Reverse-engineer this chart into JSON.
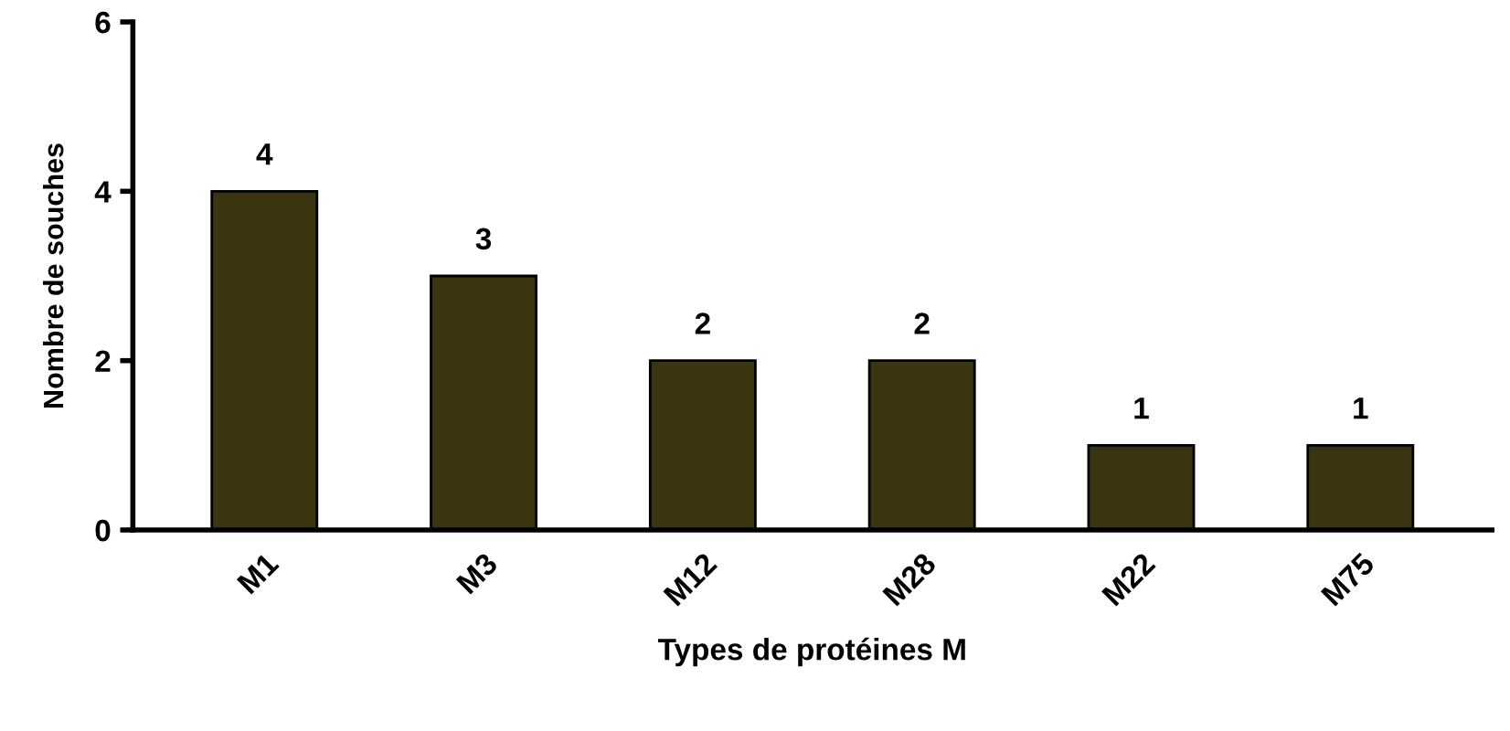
{
  "chart_data": {
    "type": "bar",
    "xlabel": "Types de protéines M",
    "ylabel": "Nombre de souches",
    "categories": [
      "M1",
      "M3",
      "M12",
      "M28",
      "M22",
      "M75"
    ],
    "values": [
      4,
      3,
      2,
      2,
      1,
      1
    ],
    "color": "#3b3410",
    "ylim": [
      0,
      6
    ],
    "yticks": [
      0,
      2,
      4,
      6
    ],
    "grid": false,
    "data_labels": true
  }
}
